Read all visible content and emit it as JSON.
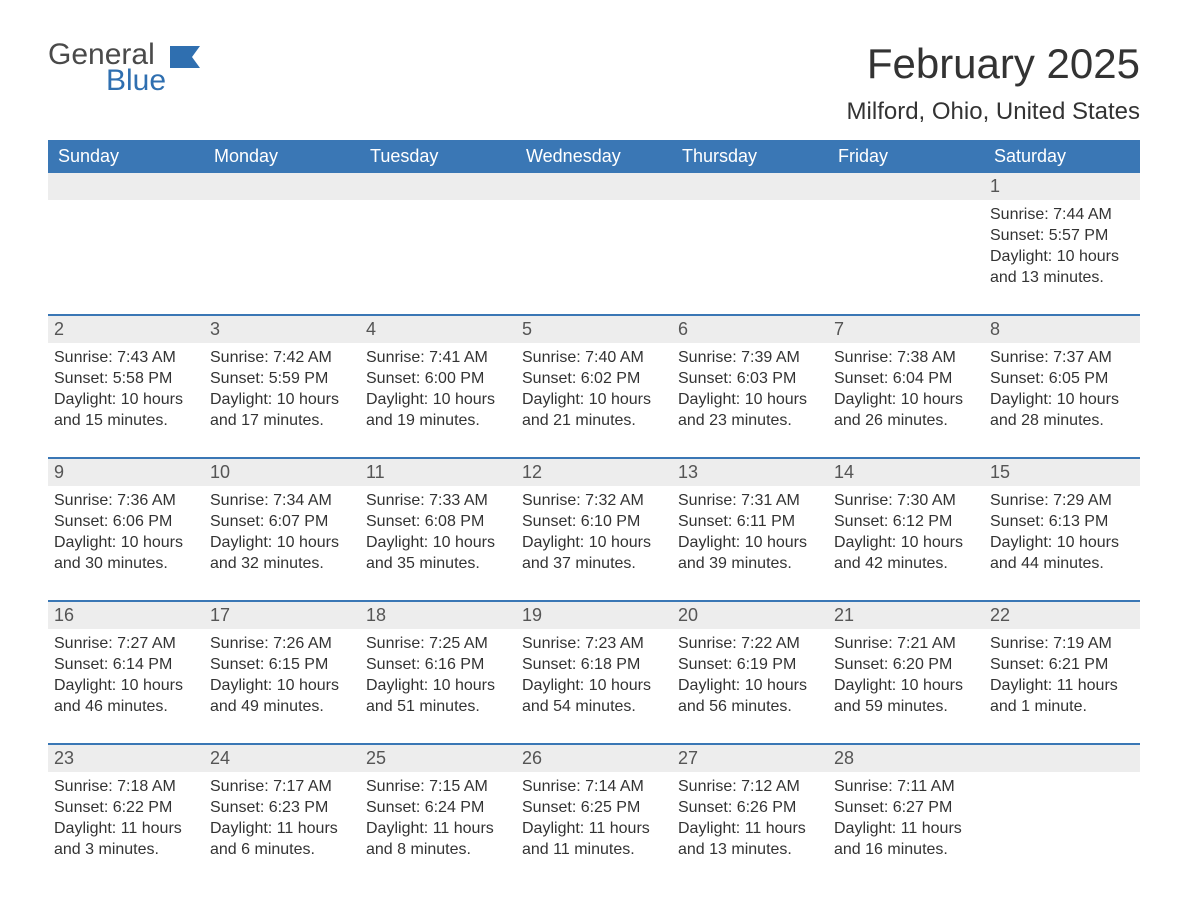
{
  "logo": {
    "text1": "General",
    "text2": "Blue",
    "flag_color": "#2f6fb0",
    "text1_color": "#4a4a4a",
    "text2_color": "#2f6fb0"
  },
  "title": "February 2025",
  "location": "Milford, Ohio, United States",
  "colors": {
    "header_bg": "#3a77b5",
    "header_text": "#ffffff",
    "daynum_bg": "#ededed",
    "daynum_text": "#555555",
    "body_text": "#333333",
    "week_divider": "#3a77b5",
    "page_bg": "#ffffff"
  },
  "day_labels": [
    "Sunday",
    "Monday",
    "Tuesday",
    "Wednesday",
    "Thursday",
    "Friday",
    "Saturday"
  ],
  "weeks": [
    [
      null,
      null,
      null,
      null,
      null,
      null,
      {
        "n": "1",
        "sunrise": "Sunrise: 7:44 AM",
        "sunset": "Sunset: 5:57 PM",
        "daylight": "Daylight: 10 hours and 13 minutes."
      }
    ],
    [
      {
        "n": "2",
        "sunrise": "Sunrise: 7:43 AM",
        "sunset": "Sunset: 5:58 PM",
        "daylight": "Daylight: 10 hours and 15 minutes."
      },
      {
        "n": "3",
        "sunrise": "Sunrise: 7:42 AM",
        "sunset": "Sunset: 5:59 PM",
        "daylight": "Daylight: 10 hours and 17 minutes."
      },
      {
        "n": "4",
        "sunrise": "Sunrise: 7:41 AM",
        "sunset": "Sunset: 6:00 PM",
        "daylight": "Daylight: 10 hours and 19 minutes."
      },
      {
        "n": "5",
        "sunrise": "Sunrise: 7:40 AM",
        "sunset": "Sunset: 6:02 PM",
        "daylight": "Daylight: 10 hours and 21 minutes."
      },
      {
        "n": "6",
        "sunrise": "Sunrise: 7:39 AM",
        "sunset": "Sunset: 6:03 PM",
        "daylight": "Daylight: 10 hours and 23 minutes."
      },
      {
        "n": "7",
        "sunrise": "Sunrise: 7:38 AM",
        "sunset": "Sunset: 6:04 PM",
        "daylight": "Daylight: 10 hours and 26 minutes."
      },
      {
        "n": "8",
        "sunrise": "Sunrise: 7:37 AM",
        "sunset": "Sunset: 6:05 PM",
        "daylight": "Daylight: 10 hours and 28 minutes."
      }
    ],
    [
      {
        "n": "9",
        "sunrise": "Sunrise: 7:36 AM",
        "sunset": "Sunset: 6:06 PM",
        "daylight": "Daylight: 10 hours and 30 minutes."
      },
      {
        "n": "10",
        "sunrise": "Sunrise: 7:34 AM",
        "sunset": "Sunset: 6:07 PM",
        "daylight": "Daylight: 10 hours and 32 minutes."
      },
      {
        "n": "11",
        "sunrise": "Sunrise: 7:33 AM",
        "sunset": "Sunset: 6:08 PM",
        "daylight": "Daylight: 10 hours and 35 minutes."
      },
      {
        "n": "12",
        "sunrise": "Sunrise: 7:32 AM",
        "sunset": "Sunset: 6:10 PM",
        "daylight": "Daylight: 10 hours and 37 minutes."
      },
      {
        "n": "13",
        "sunrise": "Sunrise: 7:31 AM",
        "sunset": "Sunset: 6:11 PM",
        "daylight": "Daylight: 10 hours and 39 minutes."
      },
      {
        "n": "14",
        "sunrise": "Sunrise: 7:30 AM",
        "sunset": "Sunset: 6:12 PM",
        "daylight": "Daylight: 10 hours and 42 minutes."
      },
      {
        "n": "15",
        "sunrise": "Sunrise: 7:29 AM",
        "sunset": "Sunset: 6:13 PM",
        "daylight": "Daylight: 10 hours and 44 minutes."
      }
    ],
    [
      {
        "n": "16",
        "sunrise": "Sunrise: 7:27 AM",
        "sunset": "Sunset: 6:14 PM",
        "daylight": "Daylight: 10 hours and 46 minutes."
      },
      {
        "n": "17",
        "sunrise": "Sunrise: 7:26 AM",
        "sunset": "Sunset: 6:15 PM",
        "daylight": "Daylight: 10 hours and 49 minutes."
      },
      {
        "n": "18",
        "sunrise": "Sunrise: 7:25 AM",
        "sunset": "Sunset: 6:16 PM",
        "daylight": "Daylight: 10 hours and 51 minutes."
      },
      {
        "n": "19",
        "sunrise": "Sunrise: 7:23 AM",
        "sunset": "Sunset: 6:18 PM",
        "daylight": "Daylight: 10 hours and 54 minutes."
      },
      {
        "n": "20",
        "sunrise": "Sunrise: 7:22 AM",
        "sunset": "Sunset: 6:19 PM",
        "daylight": "Daylight: 10 hours and 56 minutes."
      },
      {
        "n": "21",
        "sunrise": "Sunrise: 7:21 AM",
        "sunset": "Sunset: 6:20 PM",
        "daylight": "Daylight: 10 hours and 59 minutes."
      },
      {
        "n": "22",
        "sunrise": "Sunrise: 7:19 AM",
        "sunset": "Sunset: 6:21 PM",
        "daylight": "Daylight: 11 hours and 1 minute."
      }
    ],
    [
      {
        "n": "23",
        "sunrise": "Sunrise: 7:18 AM",
        "sunset": "Sunset: 6:22 PM",
        "daylight": "Daylight: 11 hours and 3 minutes."
      },
      {
        "n": "24",
        "sunrise": "Sunrise: 7:17 AM",
        "sunset": "Sunset: 6:23 PM",
        "daylight": "Daylight: 11 hours and 6 minutes."
      },
      {
        "n": "25",
        "sunrise": "Sunrise: 7:15 AM",
        "sunset": "Sunset: 6:24 PM",
        "daylight": "Daylight: 11 hours and 8 minutes."
      },
      {
        "n": "26",
        "sunrise": "Sunrise: 7:14 AM",
        "sunset": "Sunset: 6:25 PM",
        "daylight": "Daylight: 11 hours and 11 minutes."
      },
      {
        "n": "27",
        "sunrise": "Sunrise: 7:12 AM",
        "sunset": "Sunset: 6:26 PM",
        "daylight": "Daylight: 11 hours and 13 minutes."
      },
      {
        "n": "28",
        "sunrise": "Sunrise: 7:11 AM",
        "sunset": "Sunset: 6:27 PM",
        "daylight": "Daylight: 11 hours and 16 minutes."
      },
      null
    ]
  ]
}
